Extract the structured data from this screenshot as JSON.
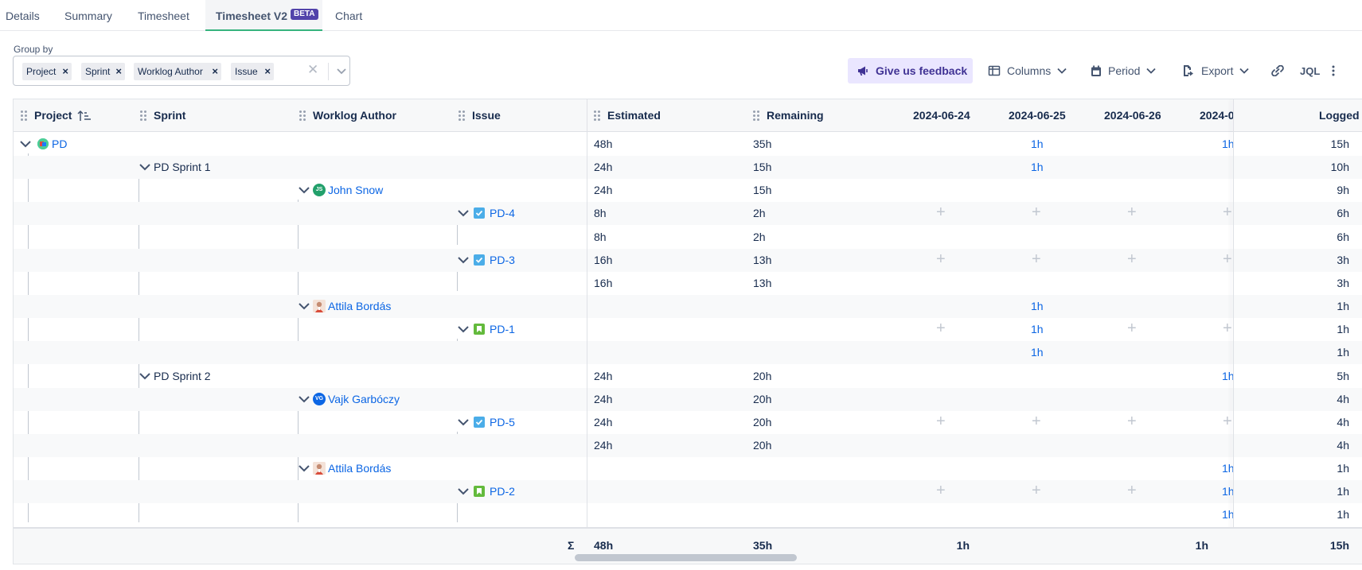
{
  "tabs": [
    {
      "label": "Details"
    },
    {
      "label": "Summary"
    },
    {
      "label": "Timesheet"
    },
    {
      "label": "Timesheet V2",
      "badge": "BETA"
    },
    {
      "label": "Chart"
    }
  ],
  "group_by": {
    "label": "Group by",
    "chips": [
      "Project",
      "Sprint",
      "Worklog Author",
      "Issue"
    ]
  },
  "toolbar": {
    "feedback": "Give us feedback",
    "columns": "Columns",
    "period": "Period",
    "export": "Export",
    "jql": "JQL"
  },
  "table": {
    "columns": {
      "project": "Project",
      "sprint": "Sprint",
      "author": "Worklog Author",
      "issue": "Issue",
      "estimated": "Estimated",
      "remaining": "Remaining",
      "d1": "2024-06-24",
      "d2": "2024-06-25",
      "d3": "2024-06-26",
      "d4": "2024-0",
      "logged": "Logged"
    },
    "rows": [
      {
        "level": "project",
        "label": "PD",
        "icon": "project-icon",
        "estimated": "48h",
        "remaining": "35h",
        "d1": "",
        "d2": "1h",
        "d3": "",
        "d4": "1h",
        "logged": "15h"
      },
      {
        "level": "sprint",
        "label": "PD Sprint 1",
        "estimated": "24h",
        "remaining": "15h",
        "d1": "",
        "d2": "1h",
        "d3": "",
        "d4": "",
        "logged": "10h"
      },
      {
        "level": "author",
        "label": "John Snow",
        "initials": "JS",
        "avatar_color": "#22a06b",
        "estimated": "24h",
        "remaining": "15h",
        "d1": "",
        "d2": "",
        "d3": "",
        "d4": "",
        "logged": "9h"
      },
      {
        "level": "issue",
        "label": "PD-4",
        "issue_type": "task",
        "estimated": "8h",
        "remaining": "2h",
        "d1": "+",
        "d2": "+",
        "d3": "+",
        "d4": "+",
        "logged": "6h"
      },
      {
        "level": "worklog",
        "estimated": "8h",
        "remaining": "2h",
        "d1": "",
        "d2": "",
        "d3": "",
        "d4": "",
        "logged": "6h"
      },
      {
        "level": "issue",
        "label": "PD-3",
        "issue_type": "task",
        "estimated": "16h",
        "remaining": "13h",
        "d1": "+",
        "d2": "+",
        "d3": "+",
        "d4": "+",
        "logged": "3h"
      },
      {
        "level": "worklog",
        "estimated": "16h",
        "remaining": "13h",
        "d1": "",
        "d2": "",
        "d3": "",
        "d4": "",
        "logged": "3h"
      },
      {
        "level": "author",
        "label": "Attila Bordás",
        "avatar": "photo",
        "estimated": "",
        "remaining": "",
        "d1": "",
        "d2": "1h",
        "d3": "",
        "d4": "",
        "logged": "1h"
      },
      {
        "level": "issue",
        "label": "PD-1",
        "issue_type": "story",
        "estimated": "",
        "remaining": "",
        "d1": "+",
        "d2": "1h",
        "d3": "+",
        "d4": "+",
        "logged": "1h"
      },
      {
        "level": "worklog",
        "estimated": "",
        "remaining": "",
        "d1": "",
        "d2": "1h",
        "d3": "",
        "d4": "",
        "logged": "1h"
      },
      {
        "level": "sprint",
        "label": "PD Sprint 2",
        "estimated": "24h",
        "remaining": "20h",
        "d1": "",
        "d2": "",
        "d3": "",
        "d4": "1h",
        "logged": "5h"
      },
      {
        "level": "author",
        "label": "Vajk Garbóczy",
        "initials": "VG",
        "avatar_color": "#0c66e4",
        "estimated": "24h",
        "remaining": "20h",
        "d1": "",
        "d2": "",
        "d3": "",
        "d4": "",
        "logged": "4h"
      },
      {
        "level": "issue",
        "label": "PD-5",
        "issue_type": "task",
        "estimated": "24h",
        "remaining": "20h",
        "d1": "+",
        "d2": "+",
        "d3": "+",
        "d4": "+",
        "logged": "4h"
      },
      {
        "level": "worklog",
        "estimated": "24h",
        "remaining": "20h",
        "d1": "",
        "d2": "",
        "d3": "",
        "d4": "",
        "logged": "4h"
      },
      {
        "level": "author",
        "label": "Attila Bordás",
        "avatar": "photo",
        "estimated": "",
        "remaining": "",
        "d1": "",
        "d2": "",
        "d3": "",
        "d4": "1h",
        "logged": "1h"
      },
      {
        "level": "issue",
        "label": "PD-2",
        "issue_type": "story",
        "estimated": "",
        "remaining": "",
        "d1": "+",
        "d2": "+",
        "d3": "+",
        "d4": "1h",
        "logged": "1h"
      },
      {
        "level": "worklog",
        "estimated": "",
        "remaining": "",
        "d1": "",
        "d2": "",
        "d3": "",
        "d4": "1h",
        "logged": "1h"
      }
    ],
    "totals": {
      "sigma": "Σ",
      "estimated": "48h",
      "remaining": "35h",
      "d1": "",
      "d2": "1h",
      "d3": "",
      "d4": "1h",
      "logged": "15h"
    }
  },
  "colors": {
    "accent_tab_underline": "#36b37e",
    "link": "#0c66e4",
    "feedback_bg": "#eae6ff",
    "beta_badge": "#5243aa"
  }
}
